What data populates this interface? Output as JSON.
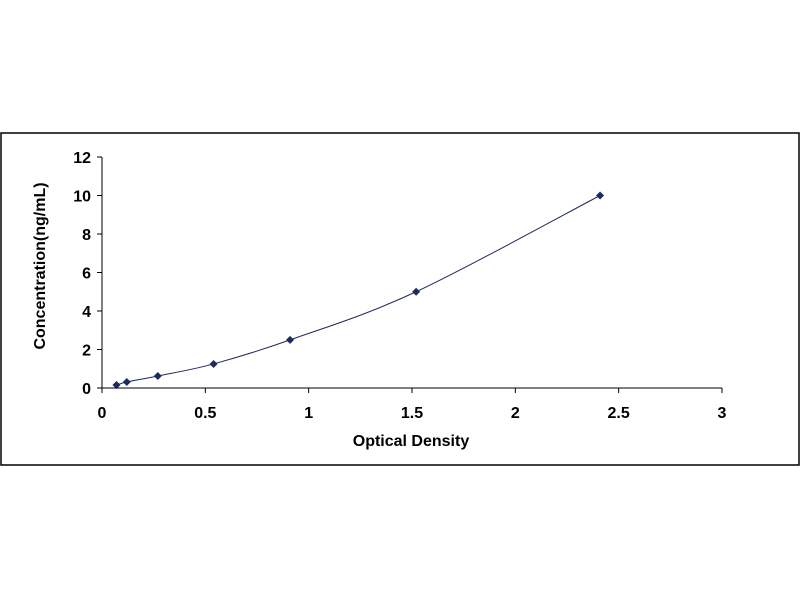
{
  "chart_data": {
    "type": "scatter",
    "xlabel": "Optical Density",
    "ylabel": "Concentration(ng/mL)",
    "xlim": [
      0,
      3
    ],
    "ylim": [
      0,
      12
    ],
    "x_ticks": [
      0,
      0.5,
      1,
      1.5,
      2,
      2.5,
      3
    ],
    "x_tick_labels": [
      "0",
      "0.5",
      "1",
      "1.5",
      "2",
      "2.5",
      "3"
    ],
    "y_ticks": [
      0,
      2,
      4,
      6,
      8,
      10,
      12
    ],
    "y_tick_labels": [
      "0",
      "2",
      "4",
      "6",
      "8",
      "10",
      "12"
    ],
    "grid": false,
    "legend": "none",
    "trendline": true,
    "colors": {
      "marker": "#1f2a5c",
      "line": "#1f2a5c",
      "axis": "#000000",
      "border": "#000000"
    },
    "series": [
      {
        "x": [
          0.07,
          0.12,
          0.27,
          0.54,
          0.91,
          1.52,
          2.41
        ],
        "y": [
          0.156,
          0.312,
          0.625,
          1.25,
          2.5,
          5,
          10
        ]
      }
    ]
  }
}
